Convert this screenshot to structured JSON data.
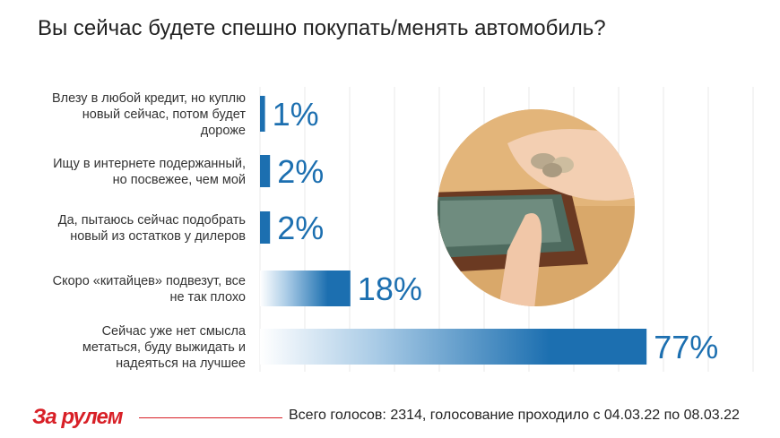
{
  "header": {
    "title": "Вы сейчас будете спешно покупать/менять автомобиль?"
  },
  "chart_data": {
    "type": "bar",
    "orientation": "horizontal",
    "categories": [
      [
        "Влезу в любой кредит, но куплю",
        "новый сейчас, потом будет",
        "дороже"
      ],
      [
        "Ищу в интернете подержанный,",
        "но посвежее, чем мой"
      ],
      [
        "Да, пытаюсь сейчас подобрать",
        "новый из остатков у дилеров"
      ],
      [
        "Скоро «китайцев» подвезут, все",
        "не так плохо"
      ],
      [
        "Сейчас уже нет смысла",
        "метаться, буду выжидать и",
        "надеяться на лучшее"
      ]
    ],
    "values": [
      1,
      2,
      2,
      18,
      77
    ],
    "value_labels": [
      "1%",
      "2%",
      "2%",
      "18%",
      "77%"
    ],
    "xlim": [
      0,
      100
    ],
    "grid": true,
    "bar_color": "#1c6fb0"
  },
  "footer": {
    "brand": "За рулем",
    "note": "Всего голосов: 2314, голосование проходило с 04.03.22 по 08.03.22"
  },
  "colors": {
    "accent": "#1c6fb0",
    "brand": "#d81f26"
  }
}
